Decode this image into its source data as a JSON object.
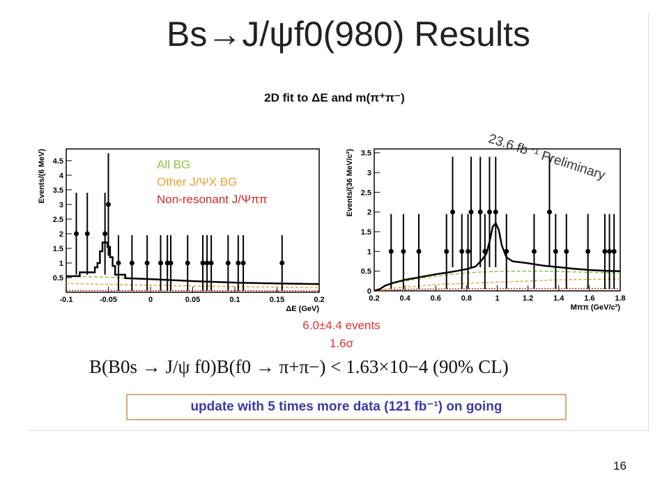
{
  "slide": {
    "title": "Bs→J/ψf0(980) Results",
    "subtitle": "2D fit to ΔE and m(π⁺π⁻)",
    "luminosity_label": "23.6 fb⁻¹ Preliminary",
    "result_events": "6.0±4.4 events",
    "result_significance": "1.6σ",
    "formula_text": "B(B0s → J/ψ f0)B(f0 → π+π−) < 1.63×10−4 (90% CL)",
    "update_note": "update with 5 times more data  (121 fb⁻¹) on going",
    "page_number": "16"
  },
  "chart_data": [
    {
      "type": "histogram",
      "xlabel": "ΔE (GeV)",
      "ylabel": "Events/(6 MeV)",
      "xlim": [
        -0.1,
        0.2
      ],
      "ylim": [
        0,
        4.9
      ],
      "x_ticks": [
        "-0.1",
        "-0.05",
        "0",
        "0.05",
        "0.1",
        "0.15",
        "0.2"
      ],
      "y_ticks": [
        "0.5",
        "1",
        "1.5",
        "2",
        "2.5",
        "3",
        "3.5",
        "4",
        "4.5"
      ],
      "legend": [
        {
          "label": "All BG",
          "color": "#8cc63e"
        },
        {
          "label": "Other J/ΨX BG",
          "color": "#f0a030"
        },
        {
          "label": "Non-resonant J/Ψππ",
          "color": "#d02a2a"
        }
      ],
      "data_points": [
        {
          "x": -0.088,
          "y": 2,
          "err": 1.4
        },
        {
          "x": -0.075,
          "y": 2,
          "err": 1.4
        },
        {
          "x": -0.054,
          "y": 2,
          "err": 1.4
        },
        {
          "x": -0.05,
          "y": 3,
          "err": 1.75
        },
        {
          "x": -0.038,
          "y": 1,
          "err": 0.95
        },
        {
          "x": -0.022,
          "y": 1,
          "err": 0.95
        },
        {
          "x": -0.004,
          "y": 1,
          "err": 0.95
        },
        {
          "x": 0.012,
          "y": 1,
          "err": 0.95
        },
        {
          "x": 0.02,
          "y": 1,
          "err": 0.95
        },
        {
          "x": 0.024,
          "y": 1,
          "err": 0.95
        },
        {
          "x": 0.044,
          "y": 1,
          "err": 0.95
        },
        {
          "x": 0.062,
          "y": 1,
          "err": 0.95
        },
        {
          "x": 0.067,
          "y": 1,
          "err": 0.95
        },
        {
          "x": 0.072,
          "y": 1,
          "err": 0.95
        },
        {
          "x": 0.092,
          "y": 1,
          "err": 0.95
        },
        {
          "x": 0.104,
          "y": 1,
          "err": 0.95
        },
        {
          "x": 0.11,
          "y": 1,
          "err": 0.95
        },
        {
          "x": 0.156,
          "y": 1,
          "err": 0.95
        }
      ],
      "fit_total": [
        {
          "x": -0.1,
          "y": 0.55
        },
        {
          "x": -0.084,
          "y": 0.55
        },
        {
          "x": -0.084,
          "y": 0.68
        },
        {
          "x": -0.066,
          "y": 0.68
        },
        {
          "x": -0.066,
          "y": 0.85
        },
        {
          "x": -0.063,
          "y": 0.85
        },
        {
          "x": -0.063,
          "y": 1.0
        },
        {
          "x": -0.06,
          "y": 1.0
        },
        {
          "x": -0.06,
          "y": 1.4
        },
        {
          "x": -0.057,
          "y": 1.4
        },
        {
          "x": -0.057,
          "y": 1.7
        },
        {
          "x": -0.051,
          "y": 1.7
        },
        {
          "x": -0.051,
          "y": 1.55
        },
        {
          "x": -0.048,
          "y": 1.55
        },
        {
          "x": -0.048,
          "y": 1.2
        },
        {
          "x": -0.045,
          "y": 1.2
        },
        {
          "x": -0.045,
          "y": 0.9
        },
        {
          "x": -0.042,
          "y": 0.9
        },
        {
          "x": -0.042,
          "y": 0.6
        },
        {
          "x": -0.03,
          "y": 0.6
        },
        {
          "x": -0.03,
          "y": 0.48
        },
        {
          "x": 0.0,
          "y": 0.45
        },
        {
          "x": 0.05,
          "y": 0.38
        },
        {
          "x": 0.1,
          "y": 0.33
        },
        {
          "x": 0.15,
          "y": 0.3
        },
        {
          "x": 0.2,
          "y": 0.28
        }
      ],
      "fit_all_bg": [
        {
          "x": -0.1,
          "y": 0.55
        },
        {
          "x": -0.07,
          "y": 0.53
        },
        {
          "x": -0.04,
          "y": 0.5
        },
        {
          "x": 0.0,
          "y": 0.44
        },
        {
          "x": 0.05,
          "y": 0.38
        },
        {
          "x": 0.1,
          "y": 0.33
        },
        {
          "x": 0.15,
          "y": 0.3
        },
        {
          "x": 0.2,
          "y": 0.28
        }
      ],
      "fit_other_jpsix": [
        {
          "x": -0.1,
          "y": 0.3
        },
        {
          "x": 0.0,
          "y": 0.24
        },
        {
          "x": 0.1,
          "y": 0.19
        },
        {
          "x": 0.2,
          "y": 0.16
        }
      ],
      "fit_nonresonant": [
        {
          "x": -0.1,
          "y": 0.06
        },
        {
          "x": 0.2,
          "y": 0.05
        }
      ]
    },
    {
      "type": "histogram",
      "xlabel": "Mππ (GeV/c²)",
      "ylabel": "Events/(36 MeV/c²)",
      "xlim": [
        0.2,
        1.8
      ],
      "ylim": [
        0,
        3.6
      ],
      "x_ticks": [
        "0.2",
        "0.4",
        "0.6",
        "0.8",
        "1",
        "1.2",
        "1.4",
        "1.6",
        "1.8"
      ],
      "y_ticks": [
        "0",
        "0.5",
        "1",
        "1.5",
        "2",
        "2.5",
        "3",
        "3.5"
      ],
      "data_points": [
        {
          "x": 0.31,
          "y": 1,
          "err": 0.95
        },
        {
          "x": 0.39,
          "y": 1,
          "err": 0.95
        },
        {
          "x": 0.49,
          "y": 1,
          "err": 0.95
        },
        {
          "x": 0.67,
          "y": 1,
          "err": 0.95
        },
        {
          "x": 0.71,
          "y": 2,
          "err": 1.4
        },
        {
          "x": 0.77,
          "y": 1,
          "err": 0.95
        },
        {
          "x": 0.81,
          "y": 1,
          "err": 0.95
        },
        {
          "x": 0.83,
          "y": 2,
          "err": 1.4
        },
        {
          "x": 0.89,
          "y": 2,
          "err": 1.4
        },
        {
          "x": 0.92,
          "y": 1,
          "err": 0.95
        },
        {
          "x": 0.95,
          "y": 2,
          "err": 1.4
        },
        {
          "x": 0.99,
          "y": 2,
          "err": 1.4
        },
        {
          "x": 1.06,
          "y": 1,
          "err": 0.95
        },
        {
          "x": 1.24,
          "y": 1,
          "err": 0.95
        },
        {
          "x": 1.34,
          "y": 2,
          "err": 1.4
        },
        {
          "x": 1.38,
          "y": 1,
          "err": 0.95
        },
        {
          "x": 1.45,
          "y": 1,
          "err": 0.95
        },
        {
          "x": 1.59,
          "y": 1,
          "err": 0.95
        },
        {
          "x": 1.7,
          "y": 1,
          "err": 0.95
        },
        {
          "x": 1.73,
          "y": 1,
          "err": 0.95
        },
        {
          "x": 1.76,
          "y": 1,
          "err": 0.95
        }
      ],
      "fit_total": [
        {
          "x": 0.2,
          "y": 0.0
        },
        {
          "x": 0.24,
          "y": 0.05
        },
        {
          "x": 0.27,
          "y": 0.13
        },
        {
          "x": 0.32,
          "y": 0.2
        },
        {
          "x": 0.4,
          "y": 0.28
        },
        {
          "x": 0.5,
          "y": 0.35
        },
        {
          "x": 0.6,
          "y": 0.42
        },
        {
          "x": 0.7,
          "y": 0.48
        },
        {
          "x": 0.8,
          "y": 0.55
        },
        {
          "x": 0.86,
          "y": 0.62
        },
        {
          "x": 0.9,
          "y": 0.78
        },
        {
          "x": 0.93,
          "y": 0.95
        },
        {
          "x": 0.95,
          "y": 1.25
        },
        {
          "x": 0.97,
          "y": 1.62
        },
        {
          "x": 0.99,
          "y": 1.72
        },
        {
          "x": 1.01,
          "y": 1.55
        },
        {
          "x": 1.03,
          "y": 1.15
        },
        {
          "x": 1.06,
          "y": 0.85
        },
        {
          "x": 1.1,
          "y": 0.75
        },
        {
          "x": 1.2,
          "y": 0.7
        },
        {
          "x": 1.3,
          "y": 0.64
        },
        {
          "x": 1.4,
          "y": 0.6
        },
        {
          "x": 1.5,
          "y": 0.56
        },
        {
          "x": 1.6,
          "y": 0.53
        },
        {
          "x": 1.7,
          "y": 0.51
        },
        {
          "x": 1.8,
          "y": 0.5
        }
      ],
      "fit_all_bg": [
        {
          "x": 0.2,
          "y": 0.0
        },
        {
          "x": 0.3,
          "y": 0.17
        },
        {
          "x": 0.5,
          "y": 0.32
        },
        {
          "x": 0.7,
          "y": 0.42
        },
        {
          "x": 0.9,
          "y": 0.48
        },
        {
          "x": 1.1,
          "y": 0.5
        },
        {
          "x": 1.3,
          "y": 0.5
        },
        {
          "x": 1.5,
          "y": 0.48
        },
        {
          "x": 1.8,
          "y": 0.45
        }
      ],
      "fit_other_jpsix": [
        {
          "x": 0.2,
          "y": 0.0
        },
        {
          "x": 0.3,
          "y": 0.06
        },
        {
          "x": 0.6,
          "y": 0.16
        },
        {
          "x": 1.0,
          "y": 0.22
        },
        {
          "x": 1.4,
          "y": 0.28
        },
        {
          "x": 1.8,
          "y": 0.3
        }
      ],
      "fit_nonresonant": [
        {
          "x": 0.2,
          "y": 0.0
        },
        {
          "x": 0.4,
          "y": 0.04
        },
        {
          "x": 1.0,
          "y": 0.06
        },
        {
          "x": 1.8,
          "y": 0.06
        }
      ]
    }
  ]
}
